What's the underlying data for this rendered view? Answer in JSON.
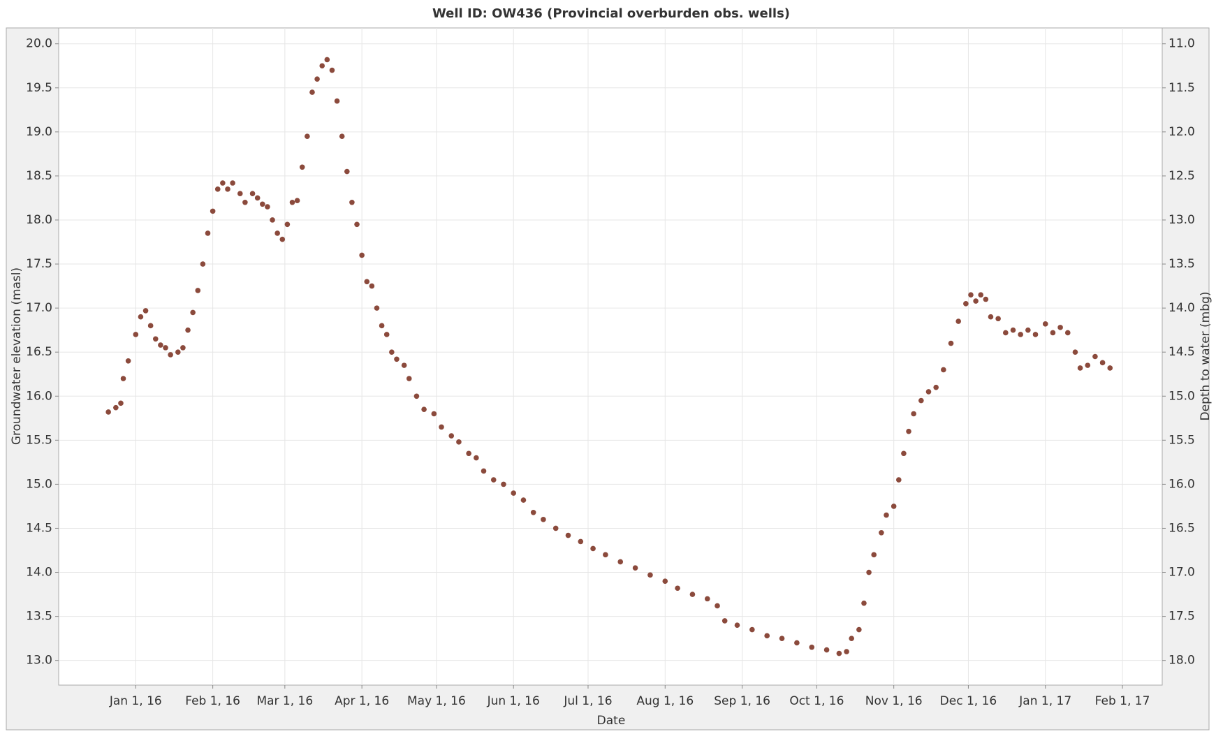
{
  "chart_data": {
    "type": "scatter",
    "title": "Well ID: OW436 (Provincial overburden obs. wells)",
    "x_label": "Date",
    "y_label": "Groundwater elevation (masl)",
    "y2_label": "Depth to water (mbg)",
    "color": "#8b4a3c",
    "grid": true,
    "xlim": [
      "2015-12-01",
      "2017-02-17"
    ],
    "xticks": [
      {
        "value": "2016-01-01",
        "label": "Jan 1, 16"
      },
      {
        "value": "2016-02-01",
        "label": "Feb 1, 16"
      },
      {
        "value": "2016-03-01",
        "label": "Mar 1, 16"
      },
      {
        "value": "2016-04-01",
        "label": "Apr 1, 16"
      },
      {
        "value": "2016-05-01",
        "label": "May 1, 16"
      },
      {
        "value": "2016-06-01",
        "label": "Jun 1, 16"
      },
      {
        "value": "2016-07-01",
        "label": "Jul 1, 16"
      },
      {
        "value": "2016-08-01",
        "label": "Aug 1, 16"
      },
      {
        "value": "2016-09-01",
        "label": "Sep 1, 16"
      },
      {
        "value": "2016-10-01",
        "label": "Oct 1, 16"
      },
      {
        "value": "2016-11-01",
        "label": "Nov 1, 16"
      },
      {
        "value": "2016-12-01",
        "label": "Dec 1, 16"
      },
      {
        "value": "2017-01-01",
        "label": "Jan 1, 17"
      },
      {
        "value": "2017-02-01",
        "label": "Feb 1, 17"
      }
    ],
    "ylim": [
      12.72,
      20.18
    ],
    "yticks": [
      {
        "value": 13,
        "label": "13.0"
      },
      {
        "value": 13.5,
        "label": "13.5"
      },
      {
        "value": 14,
        "label": "14.0"
      },
      {
        "value": 14.5,
        "label": "14.5"
      },
      {
        "value": 15,
        "label": "15.0"
      },
      {
        "value": 15.5,
        "label": "15.5"
      },
      {
        "value": 16,
        "label": "16.0"
      },
      {
        "value": 16.5,
        "label": "16.5"
      },
      {
        "value": 17,
        "label": "17.0"
      },
      {
        "value": 17.5,
        "label": "17.5"
      },
      {
        "value": 18,
        "label": "18.0"
      },
      {
        "value": 18.5,
        "label": "18.5"
      },
      {
        "value": 19,
        "label": "19.0"
      },
      {
        "value": 19.5,
        "label": "19.5"
      },
      {
        "value": 20,
        "label": "20.0"
      }
    ],
    "y2lim": [
      18.28,
      10.82
    ],
    "y2ticks": [
      {
        "value": 11,
        "label": "11.0"
      },
      {
        "value": 11.5,
        "label": "11.5"
      },
      {
        "value": 12,
        "label": "12.0"
      },
      {
        "value": 12.5,
        "label": "12.5"
      },
      {
        "value": 13,
        "label": "13.0"
      },
      {
        "value": 13.5,
        "label": "13.5"
      },
      {
        "value": 14,
        "label": "14.0"
      },
      {
        "value": 14.5,
        "label": "14.5"
      },
      {
        "value": 15,
        "label": "15.0"
      },
      {
        "value": 15.5,
        "label": "15.5"
      },
      {
        "value": 16,
        "label": "16.0"
      },
      {
        "value": 16.5,
        "label": "16.5"
      },
      {
        "value": 17,
        "label": "17.0"
      },
      {
        "value": 17.5,
        "label": "17.5"
      },
      {
        "value": 18,
        "label": "18.0"
      }
    ],
    "x": [
      "2015-12-21",
      "2015-12-24",
      "2015-12-26",
      "2015-12-27",
      "2015-12-29",
      "2016-01-01",
      "2016-01-03",
      "2016-01-05",
      "2016-01-07",
      "2016-01-09",
      "2016-01-11",
      "2016-01-13",
      "2016-01-15",
      "2016-01-18",
      "2016-01-20",
      "2016-01-22",
      "2016-01-24",
      "2016-01-26",
      "2016-01-28",
      "2016-01-30",
      "2016-02-01",
      "2016-02-03",
      "2016-02-05",
      "2016-02-07",
      "2016-02-09",
      "2016-02-12",
      "2016-02-14",
      "2016-02-17",
      "2016-02-19",
      "2016-02-21",
      "2016-02-23",
      "2016-02-25",
      "2016-02-27",
      "2016-02-29",
      "2016-03-02",
      "2016-03-04",
      "2016-03-06",
      "2016-03-08",
      "2016-03-10",
      "2016-03-12",
      "2016-03-14",
      "2016-03-16",
      "2016-03-18",
      "2016-03-20",
      "2016-03-22",
      "2016-03-24",
      "2016-03-26",
      "2016-03-28",
      "2016-03-30",
      "2016-04-01",
      "2016-04-03",
      "2016-04-05",
      "2016-04-07",
      "2016-04-09",
      "2016-04-11",
      "2016-04-13",
      "2016-04-15",
      "2016-04-18",
      "2016-04-20",
      "2016-04-23",
      "2016-04-26",
      "2016-04-30",
      "2016-05-03",
      "2016-05-07",
      "2016-05-10",
      "2016-05-14",
      "2016-05-17",
      "2016-05-20",
      "2016-05-24",
      "2016-05-28",
      "2016-06-01",
      "2016-06-05",
      "2016-06-09",
      "2016-06-13",
      "2016-06-18",
      "2016-06-23",
      "2016-06-28",
      "2016-07-03",
      "2016-07-08",
      "2016-07-14",
      "2016-07-20",
      "2016-07-26",
      "2016-08-01",
      "2016-08-06",
      "2016-08-12",
      "2016-08-18",
      "2016-08-22",
      "2016-08-25",
      "2016-08-30",
      "2016-09-05",
      "2016-09-11",
      "2016-09-17",
      "2016-09-23",
      "2016-09-29",
      "2016-10-05",
      "2016-10-10",
      "2016-10-13",
      "2016-10-15",
      "2016-10-18",
      "2016-10-20",
      "2016-10-22",
      "2016-10-24",
      "2016-10-27",
      "2016-10-29",
      "2016-11-01",
      "2016-11-03",
      "2016-11-05",
      "2016-11-07",
      "2016-11-09",
      "2016-11-12",
      "2016-11-15",
      "2016-11-18",
      "2016-11-21",
      "2016-11-24",
      "2016-11-27",
      "2016-11-30",
      "2016-12-02",
      "2016-12-04",
      "2016-12-06",
      "2016-12-08",
      "2016-12-10",
      "2016-12-13",
      "2016-12-16",
      "2016-12-19",
      "2016-12-22",
      "2016-12-25",
      "2016-12-28",
      "2017-01-01",
      "2017-01-04",
      "2017-01-07",
      "2017-01-10",
      "2017-01-13",
      "2017-01-15",
      "2017-01-18",
      "2017-01-21",
      "2017-01-24",
      "2017-01-27"
    ],
    "values": [
      15.82,
      15.87,
      15.92,
      16.2,
      16.4,
      16.7,
      16.9,
      16.97,
      16.8,
      16.65,
      16.58,
      16.55,
      16.47,
      16.5,
      16.55,
      16.75,
      16.95,
      17.2,
      17.5,
      17.85,
      18.1,
      18.35,
      18.42,
      18.35,
      18.42,
      18.3,
      18.2,
      18.3,
      18.25,
      18.18,
      18.15,
      18.0,
      17.85,
      17.78,
      17.95,
      18.2,
      18.22,
      18.6,
      18.95,
      19.45,
      19.6,
      19.75,
      19.82,
      19.7,
      19.35,
      18.95,
      18.55,
      18.2,
      17.95,
      17.6,
      17.3,
      17.25,
      17.0,
      16.8,
      16.7,
      16.5,
      16.42,
      16.35,
      16.2,
      16.0,
      15.85,
      15.8,
      15.65,
      15.55,
      15.48,
      15.35,
      15.3,
      15.15,
      15.05,
      15.0,
      14.9,
      14.82,
      14.68,
      14.6,
      14.5,
      14.42,
      14.35,
      14.27,
      14.2,
      14.12,
      14.05,
      13.97,
      13.9,
      13.82,
      13.75,
      13.7,
      13.62,
      13.45,
      13.4,
      13.35,
      13.28,
      13.25,
      13.2,
      13.15,
      13.12,
      13.08,
      13.1,
      13.25,
      13.35,
      13.65,
      14.0,
      14.2,
      14.45,
      14.65,
      14.75,
      15.05,
      15.35,
      15.6,
      15.8,
      15.95,
      16.05,
      16.1,
      16.3,
      16.6,
      16.85,
      17.05,
      17.15,
      17.08,
      17.15,
      17.1,
      16.9,
      16.88,
      16.72,
      16.75,
      16.7,
      16.75,
      16.7,
      16.82,
      16.72,
      16.78,
      16.72,
      16.5,
      16.32,
      16.35,
      16.45,
      16.38,
      16.32
    ]
  }
}
